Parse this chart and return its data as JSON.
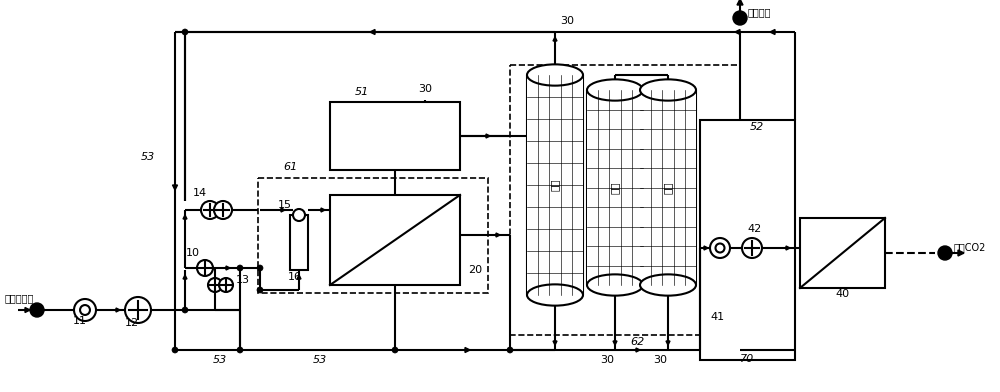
{
  "bg": "#ffffff",
  "labels": {
    "flue_gas": "待处理烟气",
    "purified": "净化排放",
    "product": "成品CO2",
    "adsorb": "吸附",
    "thermal": "热脱",
    "cold": "冷脱",
    "11": "11",
    "12": "12",
    "10": "10",
    "13": "13",
    "14": "14",
    "15": "15",
    "16": "16",
    "20": "20",
    "30a": "30",
    "30b": "30",
    "30c": "30",
    "40": "40",
    "41": "41",
    "42": "42",
    "51": "51",
    "52": "52",
    "53a": "53",
    "53b": "53",
    "53c": "53",
    "61": "61",
    "62": "62",
    "70": "70"
  }
}
